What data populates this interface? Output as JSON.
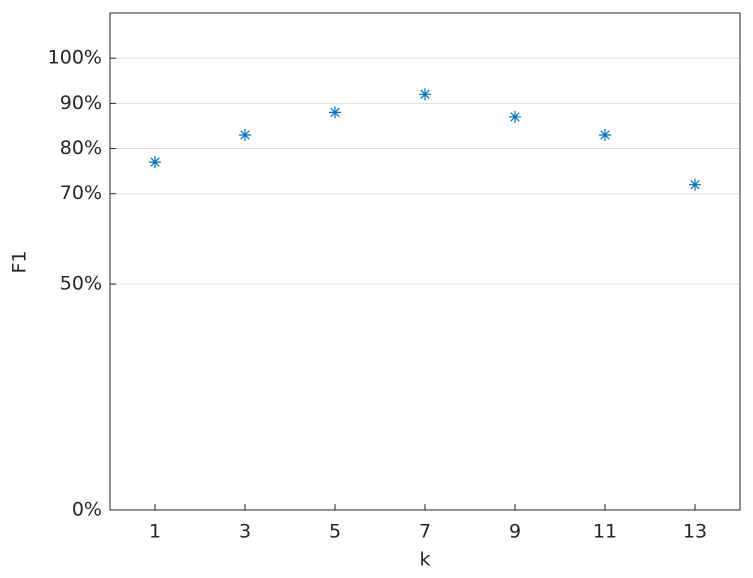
{
  "chart_data": {
    "type": "scatter",
    "xlabel": "k",
    "ylabel": "F1",
    "x": [
      1,
      3,
      5,
      7,
      9,
      11,
      13
    ],
    "series": [
      {
        "color": "#0072bd",
        "marker": "*",
        "values": [
          77,
          83,
          88,
          92,
          87,
          83,
          72
        ]
      }
    ],
    "xlim": [
      0,
      14
    ],
    "xticks": [
      1,
      3,
      5,
      7,
      9,
      11,
      13
    ],
    "ylim": [
      0,
      110
    ],
    "yticks": [
      {
        "value": 0,
        "label": "0%"
      },
      {
        "value": 50,
        "label": "50%"
      },
      {
        "value": 70,
        "label": "70%"
      },
      {
        "value": 80,
        "label": "80%"
      },
      {
        "value": 90,
        "label": "90%"
      },
      {
        "value": 100,
        "label": "100%"
      }
    ],
    "grid": true
  }
}
